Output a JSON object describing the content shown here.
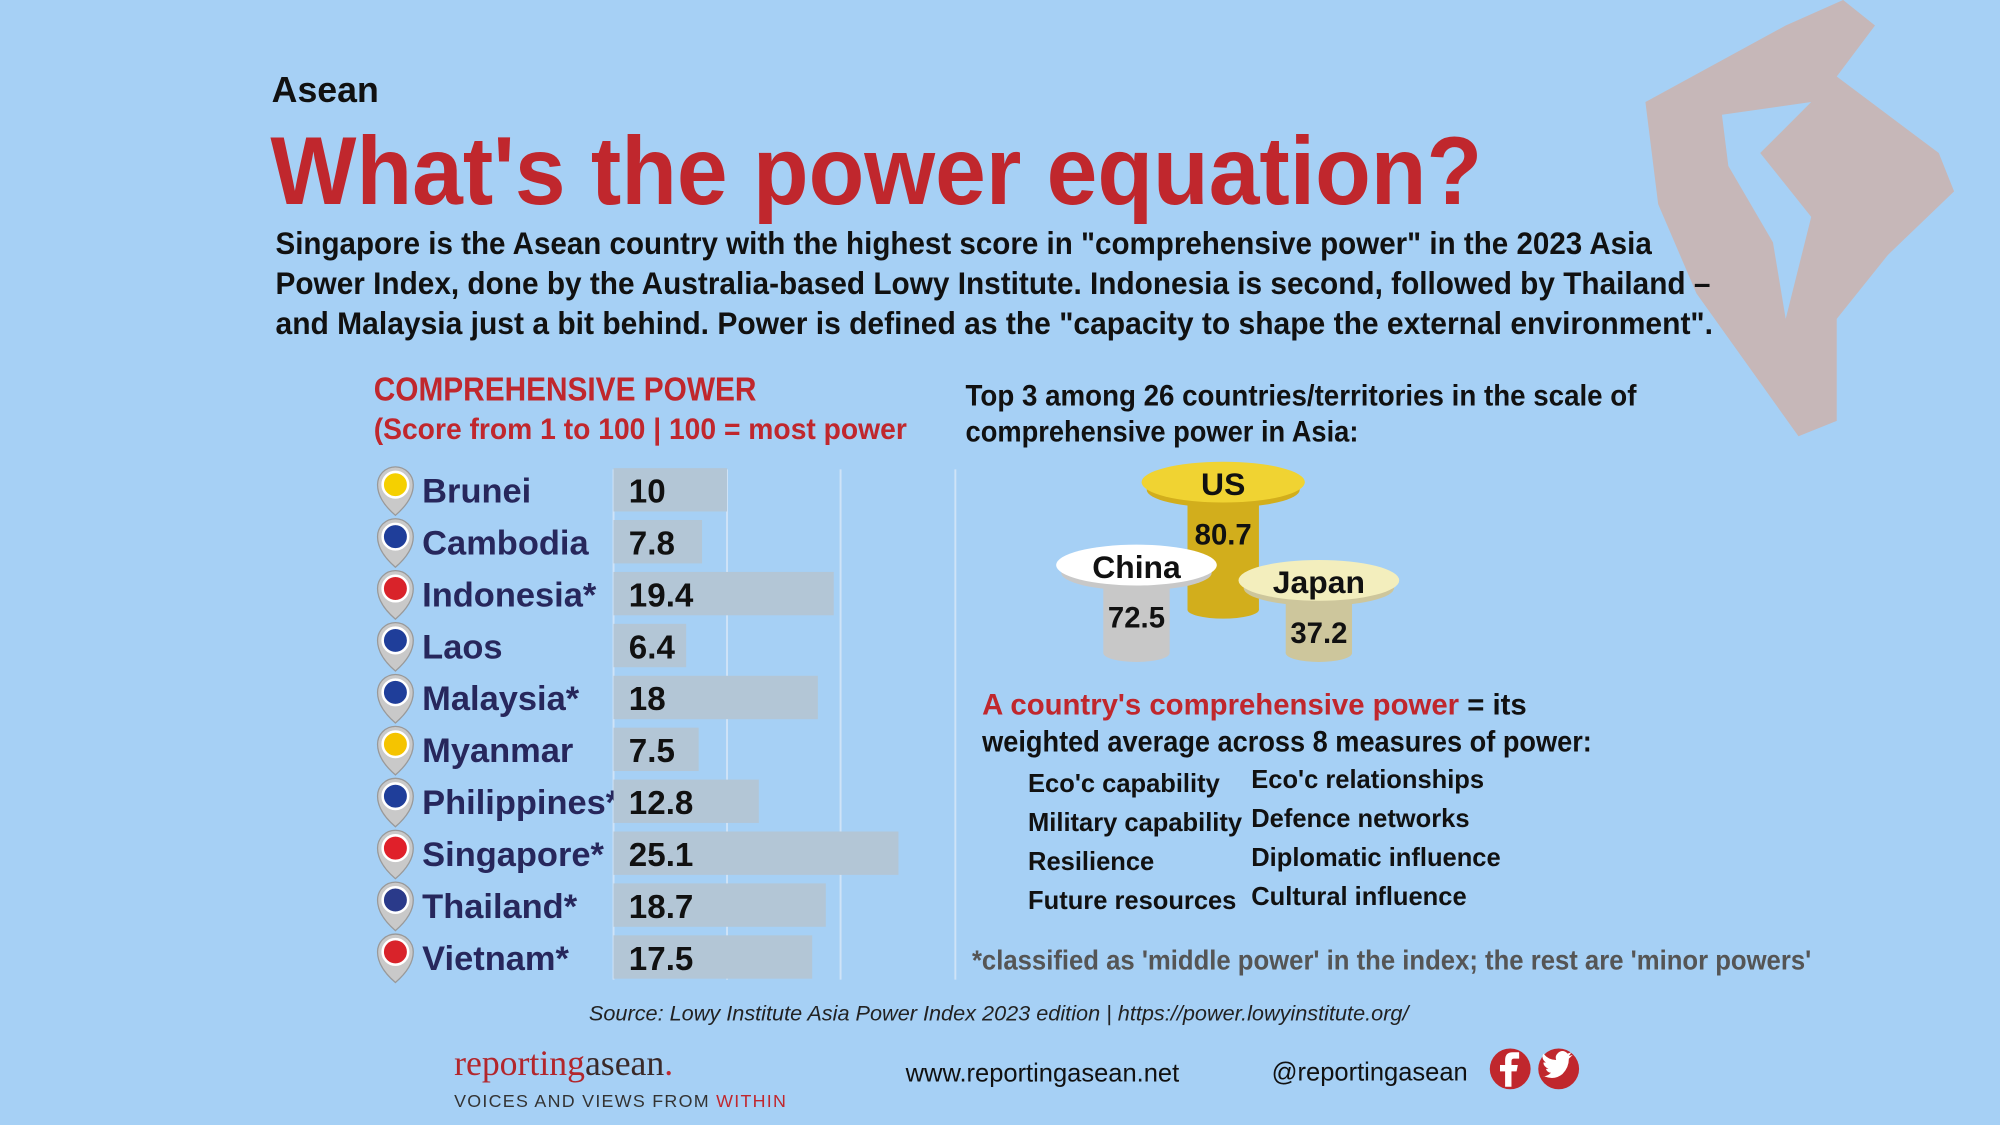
{
  "kicker": "Asean",
  "title": "What's the power equation?",
  "intro": [
    "Singapore is the Asean country with the highest score in \"comprehensive power\" in the 2023 Asia",
    "Power Index, done by the Australia-based Lowy Institute. Indonesia is second, followed by Thailand –",
    "and Malaysia just a bit behind. Power is defined as the \"capacity to shape the external environment\"."
  ],
  "chart_data": {
    "type": "bar",
    "orientation": "horizontal",
    "title": "COMPREHENSIVE POWER",
    "subtitle": "(Score from 1 to 100 | 100 = most power",
    "categories": [
      "Brunei",
      "Cambodia",
      "Indonesia*",
      "Laos",
      "Malaysia*",
      "Myanmar",
      "Philippines*",
      "Singapore*",
      "Thailand*",
      "Vietnam*"
    ],
    "values": [
      10,
      7.8,
      19.4,
      6.4,
      18,
      7.5,
      12.8,
      25.1,
      18.7,
      17.5
    ],
    "color": "#b3c6d6",
    "xlim": [
      0,
      25
    ],
    "xticks": [
      0,
      10,
      20
    ],
    "grid": true
  },
  "top3": {
    "heading": [
      "Top 3 among 26 countries/territories in the scale of",
      "comprehensive power in Asia:"
    ],
    "items": [
      {
        "name": "US",
        "score": 80.7
      },
      {
        "name": "China",
        "score": 72.5
      },
      {
        "name": "Japan",
        "score": 37.2
      }
    ]
  },
  "definition": {
    "highlight": "A country's comprehensive power",
    "rest": " = its",
    "line2": "weighted average across 8 measures of power:",
    "measures": [
      "Eco'c capability",
      "Military capability",
      "Resilience",
      "Future resources",
      "Eco'c relationships",
      "Defence networks",
      "Diplomatic influence",
      "Cultural influence"
    ]
  },
  "footnote": "*classified as 'middle power' in the index; the rest are 'minor powers'",
  "source": "Source: Lowy Institute Asia Power Index 2023 edition | https://power.lowyinstitute.org/",
  "footer": {
    "brand_a": "reporting",
    "brand_b": "asean",
    "brand_dot": ".",
    "tagline": "VOICES AND VIEWS FROM ",
    "tagline_highlight": "WITHIN",
    "website": "www.reportingasean.net",
    "handle": "@reportingasean"
  }
}
